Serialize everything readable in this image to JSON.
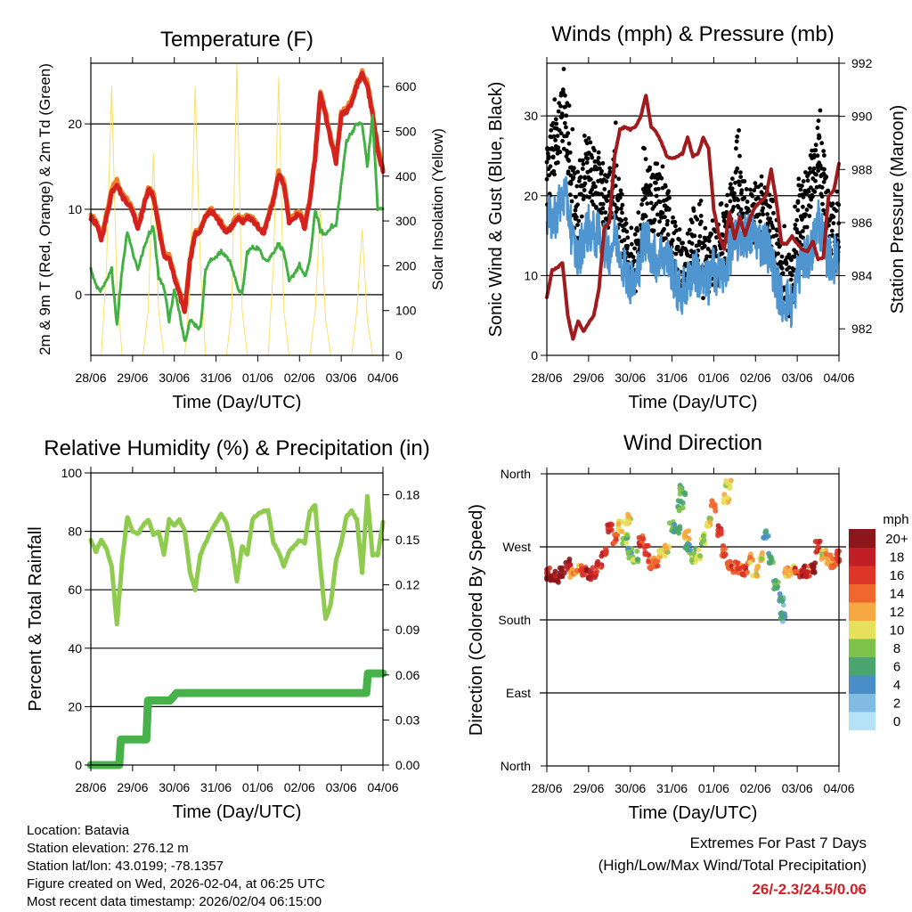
{
  "chart_data": [
    {
      "id": "temperature",
      "type": "line",
      "title": "Temperature (F)",
      "xlabel": "Time (Day/UTC)",
      "ylabel": "2m & 9m T (Red, Orange) & 2m Td (Green)",
      "y2label": "Solar Insolation (Yellow)",
      "xticks": [
        "28/06",
        "29/06",
        "30/06",
        "31/06",
        "01/06",
        "02/06",
        "03/06",
        "04/06"
      ],
      "xlim": [
        0,
        7
      ],
      "ylim": [
        -7.1,
        27.1
      ],
      "y2lim": [
        0,
        652
      ],
      "yticks": [
        0,
        10,
        20
      ],
      "y2ticks": [
        0,
        100,
        200,
        300,
        400,
        500,
        600
      ],
      "grid_y": [
        0,
        10,
        20
      ],
      "x_step_days": 0.125,
      "series": [
        {
          "name": "Solar Insolation",
          "axis": "right",
          "color": "#fbe066",
          "width": 1,
          "values": [
            0,
            0,
            0,
            200,
            600,
            150,
            0,
            0,
            0,
            0,
            0,
            100,
            450,
            100,
            0,
            0,
            0,
            0,
            0,
            150,
            600,
            200,
            0,
            0,
            0,
            0,
            0,
            100,
            650,
            100,
            0,
            0,
            0,
            0,
            0,
            200,
            620,
            100,
            0,
            0,
            0,
            0,
            0,
            100,
            330,
            80,
            0,
            0,
            0,
            0,
            0,
            100,
            280,
            80,
            0,
            0,
            0
          ]
        },
        {
          "name": "9m T",
          "axis": "left",
          "color": "#f07f2a",
          "width": 5,
          "values": [
            9.3,
            8.6,
            6.8,
            9.4,
            12.4,
            13.4,
            11.8,
            11.1,
            10.1,
            8.1,
            10.3,
            12.6,
            11.8,
            8.4,
            4.9,
            4.6,
            2.3,
            0.3,
            -1.7,
            4.3,
            7.3,
            7.8,
            9.2,
            10.2,
            9.2,
            8.5,
            7.5,
            8.2,
            9.3,
            8.8,
            9.2,
            9.0,
            8.2,
            7.2,
            9.2,
            11.3,
            14.3,
            13.3,
            8.8,
            9.3,
            9.8,
            8.1,
            11.3,
            16.3,
            23.9,
            21.4,
            18.4,
            15.9,
            21.3,
            21.8,
            22.8,
            24.8,
            26.1,
            24.8,
            21.3,
            17.3,
            14.8
          ]
        },
        {
          "name": "2m T",
          "axis": "left",
          "color": "#d4231f",
          "width": 5,
          "values": [
            9,
            8.3,
            6.5,
            9,
            12,
            13,
            11.5,
            10.8,
            9.8,
            7.8,
            10,
            12.3,
            11.5,
            8,
            4.5,
            4.3,
            2,
            0,
            -2,
            4,
            7,
            7.5,
            9,
            10,
            9,
            8.3,
            7.3,
            8,
            9,
            8.5,
            9,
            8.8,
            8,
            7,
            9,
            11,
            14,
            13,
            8.5,
            9,
            9.5,
            7.8,
            11,
            16,
            23.5,
            21,
            18,
            15.5,
            21,
            21.5,
            22.5,
            24.5,
            25.8,
            24.5,
            21,
            17,
            14.5
          ]
        },
        {
          "name": "2m Td",
          "axis": "left",
          "color": "#42b043",
          "width": 3,
          "dashed": true,
          "values": [
            3,
            1,
            0.5,
            1.5,
            3,
            -3.5,
            3,
            7.5,
            5,
            3,
            5,
            7,
            8,
            2,
            1,
            -3,
            0.5,
            -2,
            -5.5,
            -3,
            -3.5,
            -4,
            3,
            4,
            4.5,
            5,
            4.5,
            3.5,
            1,
            0,
            5,
            5.5,
            5.5,
            4.5,
            4,
            5,
            6,
            5,
            1.5,
            2.5,
            3.5,
            2,
            4,
            10,
            7.5,
            7,
            8,
            8,
            13,
            18,
            19,
            20,
            20,
            15,
            21,
            10,
            10
          ]
        }
      ]
    },
    {
      "id": "winds",
      "type": "line",
      "title": "Winds (mph) & Pressure (mb)",
      "xlabel": "Time (Day/UTC)",
      "ylabel": "Sonic Wind & Gust (Blue, Black)",
      "y2label": "Station Pressure (Maroon)",
      "xticks": [
        "28/06",
        "29/06",
        "30/06",
        "31/06",
        "01/06",
        "02/06",
        "03/06",
        "04/06"
      ],
      "xlim": [
        0,
        7
      ],
      "ylim": [
        0,
        36.6
      ],
      "y2lim": [
        981.0,
        992.0
      ],
      "yticks": [
        0,
        10,
        20,
        30
      ],
      "y2ticks": [
        982,
        984,
        986,
        988,
        990,
        992
      ],
      "grid_y": [
        10,
        20,
        30
      ],
      "x_step_days": 0.125,
      "series": [
        {
          "name": "Gust",
          "axis": "left",
          "color": "#000000",
          "style": "scatter",
          "values": [
            22,
            25,
            27,
            30,
            28,
            20,
            17,
            22,
            24,
            22,
            21,
            20,
            20,
            22,
            18,
            14,
            12,
            12,
            16,
            20,
            19,
            19,
            19,
            17,
            15,
            11,
            10,
            12,
            15,
            13,
            11,
            11,
            12,
            13,
            14,
            18,
            19,
            21,
            18,
            17,
            18,
            18,
            17,
            16,
            14,
            9,
            9,
            8,
            15,
            18,
            20,
            23,
            26,
            22,
            16,
            14,
            16
          ]
        },
        {
          "name": "Sonic Wind",
          "axis": "left",
          "color": "#4f95d0",
          "style": "band",
          "values": [
            17,
            17,
            18,
            20,
            19,
            14,
            12,
            15,
            16,
            15,
            15,
            14,
            13,
            15,
            13,
            11,
            9,
            9,
            13,
            15,
            13,
            12,
            13,
            12,
            11,
            8,
            8,
            9,
            11,
            10,
            9,
            9,
            11,
            10,
            10,
            13,
            14,
            15,
            15,
            15,
            15,
            14,
            14,
            12,
            9,
            7,
            7,
            6,
            10,
            12,
            12,
            14,
            17,
            14,
            12,
            12,
            13
          ]
        },
        {
          "name": "Station Pressure",
          "axis": "right",
          "color": "#a01b1d",
          "width": 4,
          "values": [
            983.2,
            984.2,
            984.3,
            984.5,
            982.5,
            981.6,
            982.3,
            981.9,
            982.2,
            982.5,
            983.5,
            985.8,
            986.0,
            988.5,
            989.5,
            989.6,
            989.5,
            989.6,
            990.0,
            990.8,
            989.6,
            989.4,
            989.0,
            988.5,
            988.4,
            988.5,
            988.6,
            989.2,
            988.5,
            988.6,
            989.2,
            988.8,
            986.5,
            985.5,
            985.0,
            986.4,
            985.4,
            986.2,
            985.5,
            986.2,
            986.6,
            986.8,
            987.0,
            988.0,
            986.8,
            985.2,
            985.2,
            985.5,
            985.2,
            985.0,
            984.9,
            985.3,
            984.6,
            984.7,
            987.0,
            987.2,
            988.2
          ]
        }
      ]
    },
    {
      "id": "humidity",
      "type": "line",
      "title": "Relative Humidity (%) & Precipitation (in)",
      "xlabel": "Time (Day/UTC)",
      "ylabel": "Percent & Total Rainfall",
      "xticks": [
        "28/06",
        "29/06",
        "30/06",
        "31/06",
        "01/06",
        "02/06",
        "03/06",
        "04/06"
      ],
      "xlim": [
        0,
        7
      ],
      "ylim": [
        0,
        100
      ],
      "y2lim": [
        0,
        0.1945
      ],
      "yticks": [
        0,
        20,
        40,
        60,
        80,
        100
      ],
      "y2ticks": [
        "0.00",
        "0.03",
        "0.06",
        "0.09",
        "0.12",
        "0.15",
        "0.18"
      ],
      "grid_y": [
        20,
        40,
        60,
        80
      ],
      "x_step_days": 0.125,
      "series": [
        {
          "name": "Relative Humidity",
          "axis": "left",
          "color": "#8fcb4f",
          "width": 5,
          "values": [
            77,
            73,
            77,
            74,
            68,
            48,
            70,
            85,
            80,
            79,
            82,
            84,
            79,
            80,
            72,
            84,
            82,
            84,
            80,
            66,
            60,
            72,
            76,
            80,
            83,
            86,
            83,
            75,
            63,
            75,
            72,
            84,
            86,
            87,
            87,
            76,
            73,
            68,
            73,
            75,
            77,
            76,
            87,
            89,
            68,
            50,
            55,
            70,
            76,
            85,
            87,
            84,
            66,
            92,
            72,
            72,
            83
          ]
        },
        {
          "name": "Total Precipitation",
          "axis": "right",
          "color": "#46b249",
          "width": 9,
          "style": "step",
          "points": [
            [
              0,
              0
            ],
            [
              0.68,
              0
            ],
            [
              0.72,
              0.017
            ],
            [
              1.33,
              0.017
            ],
            [
              1.37,
              0.043
            ],
            [
              1.9,
              0.043
            ],
            [
              2.05,
              0.048
            ],
            [
              6.6,
              0.048
            ],
            [
              6.64,
              0.061
            ],
            [
              7,
              0.061
            ]
          ]
        }
      ]
    },
    {
      "id": "direction",
      "type": "scatter",
      "title": "Wind Direction",
      "xlabel": "Time (Day/UTC)",
      "ylabel": "Direction (Colored By Speed)",
      "xticks": [
        "28/06",
        "29/06",
        "30/06",
        "31/06",
        "01/06",
        "02/06",
        "03/06",
        "04/06"
      ],
      "xlim": [
        0,
        7
      ],
      "ylim": [
        0,
        360
      ],
      "yticks": [
        0,
        90,
        180,
        270,
        360
      ],
      "ytick_labels": [
        "North",
        "East",
        "South",
        "West",
        "North"
      ],
      "grid_y": [
        90,
        180,
        270
      ],
      "legend": {
        "title": "mph",
        "position": "right",
        "labels": [
          "0",
          "2",
          "4",
          "6",
          "8",
          "10",
          "12",
          "14",
          "16",
          "18",
          "20+"
        ],
        "colors": [
          "#b4e2f7",
          "#80bbe4",
          "#4a8ec8",
          "#4aa56e",
          "#7dc24b",
          "#e6e05b",
          "#f6a843",
          "#ef662f",
          "#dd3527",
          "#bf1f25",
          "#8c1619"
        ]
      },
      "points_day_dir_speed": [
        [
          0,
          237,
          18
        ],
        [
          0.125,
          235,
          20
        ],
        [
          0.25,
          233,
          20
        ],
        [
          0.375,
          240,
          20
        ],
        [
          0.5,
          248,
          19
        ],
        [
          0.625,
          236,
          12
        ],
        [
          0.75,
          240,
          12
        ],
        [
          0.875,
          242,
          16
        ],
        [
          1.0,
          236,
          18
        ],
        [
          1.125,
          238,
          16
        ],
        [
          1.25,
          245,
          16
        ],
        [
          1.375,
          262,
          16
        ],
        [
          1.5,
          295,
          16
        ],
        [
          1.625,
          280,
          14
        ],
        [
          1.75,
          295,
          10
        ],
        [
          1.875,
          280,
          8
        ],
        [
          1.95,
          305,
          10
        ],
        [
          2.0,
          262,
          6
        ],
        [
          2.125,
          258,
          8
        ],
        [
          2.25,
          278,
          16
        ],
        [
          2.375,
          265,
          16
        ],
        [
          2.5,
          248,
          14
        ],
        [
          2.625,
          250,
          14
        ],
        [
          2.75,
          260,
          10
        ],
        [
          2.875,
          265,
          10
        ],
        [
          3.0,
          295,
          6
        ],
        [
          3.125,
          290,
          6
        ],
        [
          3.2,
          320,
          6
        ],
        [
          3.25,
          340,
          6
        ],
        [
          3.35,
          285,
          12
        ],
        [
          3.375,
          268,
          6
        ],
        [
          3.5,
          255,
          8
        ],
        [
          3.625,
          262,
          8
        ],
        [
          3.75,
          280,
          8
        ],
        [
          3.875,
          300,
          10
        ],
        [
          4.0,
          320,
          12
        ],
        [
          4.3,
          330,
          10
        ],
        [
          4.35,
          345,
          10
        ],
        [
          4.125,
          290,
          16
        ],
        [
          4.25,
          265,
          16
        ],
        [
          4.375,
          250,
          16
        ],
        [
          4.5,
          245,
          14
        ],
        [
          4.625,
          245,
          14
        ],
        [
          4.75,
          240,
          16
        ],
        [
          4.875,
          255,
          12
        ],
        [
          5.0,
          240,
          10
        ],
        [
          5.125,
          260,
          10
        ],
        [
          5.25,
          285,
          4
        ],
        [
          5.375,
          255,
          6
        ],
        [
          5.5,
          225,
          6
        ],
        [
          5.625,
          205,
          4
        ],
        [
          5.65,
          185,
          4
        ],
        [
          5.75,
          240,
          12
        ],
        [
          5.875,
          240,
          10
        ],
        [
          6.0,
          238,
          16
        ],
        [
          6.125,
          240,
          18
        ],
        [
          6.25,
          240,
          16
        ],
        [
          6.375,
          245,
          20
        ],
        [
          6.5,
          270,
          16
        ],
        [
          6.625,
          260,
          10
        ],
        [
          6.75,
          255,
          12
        ],
        [
          6.875,
          250,
          14
        ],
        [
          7.0,
          258,
          16
        ]
      ]
    }
  ],
  "footer": {
    "lines": [
      "Location: Batavia",
      "Station elevation: 276.12 m",
      "Station lat/lon: 43.0199; -78.1357",
      "Figure created on Wed, 2026-02-04, at 06:25 UTC",
      "Most recent data timestamp: 2026/02/04 06:15:00"
    ]
  },
  "extremes": {
    "heading": "Extremes For Past 7 Days",
    "subheading": "(High/Low/Max Wind/Total Precipitation)",
    "value": "26/-2.3/24.5/0.06",
    "value_color": "#cc2229"
  }
}
